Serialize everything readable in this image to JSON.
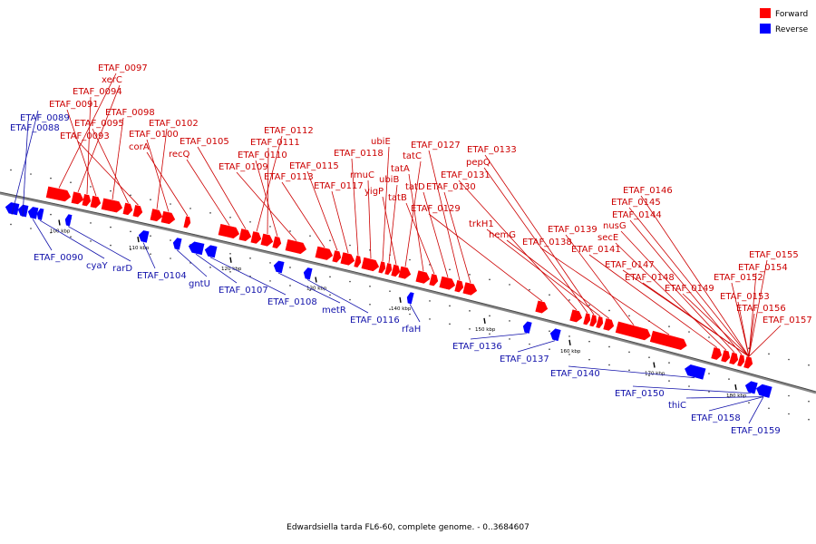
{
  "colors": {
    "forward": "#ff0000",
    "reverse": "#0000ff",
    "backbone": "#808080",
    "label_forward": "#cc0000",
    "label_reverse": "#1111aa"
  },
  "legend": [
    {
      "label": "Forward",
      "color": "#ff0000"
    },
    {
      "label": "Reverse",
      "color": "#0000ff"
    }
  ],
  "caption": "Edwardsiella tarda FL6-60, complete genome. - 0..3684607",
  "ticks": [
    "100 kbp",
    "110 kbp",
    "120 kbp",
    "130 kbp",
    "140 kbp",
    "150 kbp",
    "160 kbp",
    "170 kbp",
    "180 kbp"
  ],
  "labels_forward": [
    "ETAF_0097",
    "xerC",
    "ETAF_0094",
    "ETAF_0091",
    "ETAF_0098",
    "ETAF_0095",
    "ETAF_0093",
    "ETAF_0102",
    "ETAF_0100",
    "corA",
    "recQ",
    "ETAF_0105",
    "ETAF_0112",
    "ETAF_0111",
    "ETAF_0110",
    "ETAF_0109",
    "ETAF_0113",
    "ETAF_0115",
    "ETAF_0117",
    "ETAF_0118",
    "rmuC",
    "ubiE",
    "ubiB",
    "yigP",
    "tatC",
    "tatA",
    "tatB",
    "tatD",
    "ETAF_0127",
    "ETAF_0130",
    "ETAF_0129",
    "ETAF_0131",
    "pepQ",
    "ETAF_0133",
    "trkH1",
    "hemG",
    "ETAF_0139",
    "ETAF_0138",
    "ETAF_0141",
    "secE",
    "nusG",
    "ETAF_0144",
    "ETAF_0145",
    "ETAF_0146",
    "ETAF_0147",
    "ETAF_0148",
    "ETAF_0149",
    "ETAF_0155",
    "ETAF_0154",
    "ETAF_0152",
    "ETAF_0153",
    "ETAF_0156",
    "ETAF_0157"
  ],
  "labels_reverse": [
    "ETAF_0089",
    "ETAF_0088",
    "ETAF_0090",
    "cyaY",
    "rarD",
    "ETAF_0104",
    "gntU",
    "ETAF_0107",
    "ETAF_0108",
    "metR",
    "ETAF_0116",
    "rfaH",
    "ETAF_0136",
    "ETAF_0137",
    "ETAF_0140",
    "ETAF_0150",
    "thiC",
    "ETAF_0158",
    "ETAF_0159"
  ]
}
